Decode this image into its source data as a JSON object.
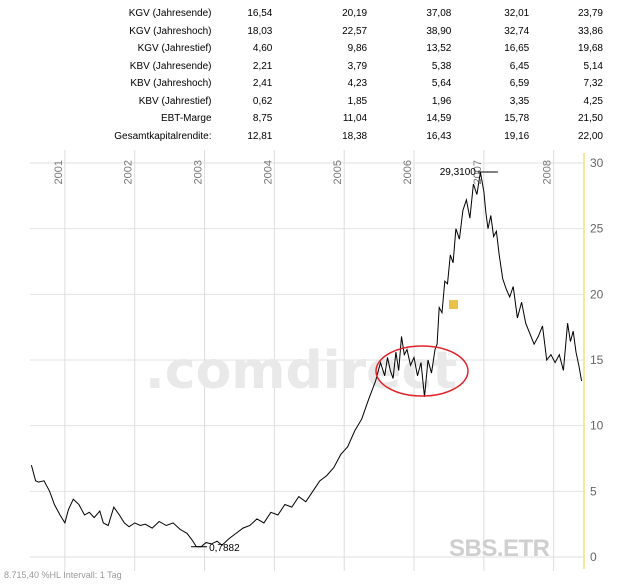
{
  "table": {
    "rows": [
      {
        "label": "KGV (Jahresende)",
        "values": [
          "16,54",
          "20,19",
          "37,08",
          "32,01",
          "23,79"
        ]
      },
      {
        "label": "KGV (Jahreshoch)",
        "values": [
          "18,03",
          "22,57",
          "38,90",
          "32,74",
          "33,86"
        ]
      },
      {
        "label": "KGV (Jahrestief)",
        "values": [
          "4,60",
          "9,86",
          "13,52",
          "16,65",
          "19,68"
        ]
      },
      {
        "label": "KBV (Jahresende)",
        "values": [
          "2,21",
          "3,79",
          "5,38",
          "6,45",
          "5,14"
        ]
      },
      {
        "label": "KBV (Jahreshoch)",
        "values": [
          "2,41",
          "4,23",
          "5,64",
          "6,59",
          "7,32"
        ]
      },
      {
        "label": "KBV (Jahrestief)",
        "values": [
          "0,62",
          "1,85",
          "1,96",
          "3,35",
          "4,25"
        ]
      },
      {
        "label": "EBT-Marge",
        "values": [
          "8,75",
          "11,04",
          "14,59",
          "15,78",
          "21,50"
        ]
      },
      {
        "label": "Gesamtkapitalrendite:",
        "values": [
          "12,81",
          "18,38",
          "16,43",
          "19,16",
          "22,00"
        ]
      }
    ]
  },
  "watermark": {
    "text": ".comdirect"
  },
  "ticker": "SBS.ETR",
  "footer": "8.715,40 %HL Intervall: 1 Tag",
  "colors": {
    "price_line": "#000000",
    "grid": "#dddddd",
    "axis_line": "#f2df7a",
    "circle": "#e0242a",
    "marker": "#e8c24a"
  },
  "chart_data": {
    "type": "line",
    "title": "",
    "xlabel": "",
    "ylabel": "",
    "x_ticks": [
      "2001",
      "2002",
      "2003",
      "2004",
      "2005",
      "2006",
      "2007",
      "2008"
    ],
    "x_range": [
      2000.5,
      2008.42
    ],
    "ylim": [
      0,
      30
    ],
    "y_ticks": [
      0,
      5,
      10,
      15,
      20,
      25,
      30
    ],
    "grid": true,
    "series": [
      {
        "x": [
          2000.52,
          2000.58,
          2000.62,
          2000.7,
          2000.78,
          2000.85,
          2000.93,
          2001.0,
          2001.05,
          2001.12,
          2001.2,
          2001.28,
          2001.35,
          2001.42,
          2001.5,
          2001.55,
          2001.62,
          2001.7,
          2001.78,
          2001.85,
          2001.92,
          2002.0,
          2002.08,
          2002.15,
          2002.25,
          2002.35,
          2002.45,
          2002.55,
          2002.65,
          2002.75,
          2002.82,
          2002.88,
          2002.95,
          2003.02,
          2003.1,
          2003.18,
          2003.25,
          2003.35,
          2003.45,
          2003.55,
          2003.65,
          2003.75,
          2003.85,
          2003.95,
          2004.05,
          2004.15,
          2004.25,
          2004.35,
          2004.45,
          2004.55,
          2004.65,
          2004.75,
          2004.85,
          2004.95,
          2005.05,
          2005.15,
          2005.25,
          2005.35,
          2005.45,
          2005.52,
          2005.58,
          2005.62,
          2005.66,
          2005.7,
          2005.74,
          2005.78,
          2005.82,
          2005.86,
          2005.9,
          2005.95,
          2006.0,
          2006.05,
          2006.1,
          2006.15,
          2006.2,
          2006.25,
          2006.3,
          2006.33,
          2006.36,
          2006.4,
          2006.44,
          2006.48,
          2006.52,
          2006.56,
          2006.6,
          2006.65,
          2006.7,
          2006.75,
          2006.8,
          2006.85,
          2006.9,
          2006.95,
          2007.0,
          2007.03,
          2007.06,
          2007.1,
          2007.14,
          2007.18,
          2007.22,
          2007.27,
          2007.32,
          2007.37,
          2007.42,
          2007.48,
          2007.54,
          2007.6,
          2007.66,
          2007.72,
          2007.78,
          2007.84,
          2007.9,
          2007.96,
          2008.02,
          2008.08,
          2008.14,
          2008.2,
          2008.24,
          2008.28,
          2008.32,
          2008.36,
          2008.4
        ],
        "y": [
          7.0,
          5.8,
          5.7,
          5.8,
          5.0,
          4.0,
          3.2,
          2.6,
          3.6,
          4.4,
          4.0,
          3.2,
          3.4,
          3.0,
          3.5,
          2.6,
          2.4,
          3.8,
          3.2,
          2.6,
          2.3,
          2.6,
          2.4,
          2.5,
          2.2,
          2.7,
          2.4,
          2.6,
          2.1,
          1.8,
          1.3,
          0.8,
          0.78,
          1.1,
          1.0,
          1.2,
          0.9,
          1.4,
          1.8,
          2.2,
          2.4,
          2.9,
          2.6,
          3.4,
          3.2,
          4.0,
          3.8,
          4.6,
          4.2,
          5.0,
          5.8,
          6.2,
          6.8,
          7.8,
          8.4,
          9.6,
          10.5,
          12.0,
          13.4,
          14.8,
          13.8,
          15.2,
          14.2,
          13.6,
          15.6,
          14.2,
          16.8,
          15.4,
          15.8,
          14.6,
          15.2,
          13.8,
          14.8,
          12.2,
          15.0,
          14.0,
          15.8,
          16.2,
          19.0,
          18.6,
          21.0,
          20.8,
          23.0,
          22.4,
          25.0,
          24.2,
          26.4,
          27.2,
          25.8,
          28.4,
          27.6,
          29.31,
          27.8,
          26.2,
          25.0,
          26.0,
          24.4,
          24.8,
          23.0,
          21.2,
          20.4,
          19.8,
          20.6,
          18.2,
          19.4,
          17.8,
          17.0,
          16.2,
          16.8,
          17.6,
          15.0,
          15.4,
          14.8,
          15.4,
          14.2,
          17.8,
          16.4,
          17.2,
          15.6,
          14.6,
          13.4
        ]
      }
    ],
    "annotations": [
      {
        "text": "29,3100",
        "x": 2007.0,
        "y": 29.31
      },
      {
        "text": "0,7882",
        "x": 2002.95,
        "y": 0.78
      }
    ]
  }
}
